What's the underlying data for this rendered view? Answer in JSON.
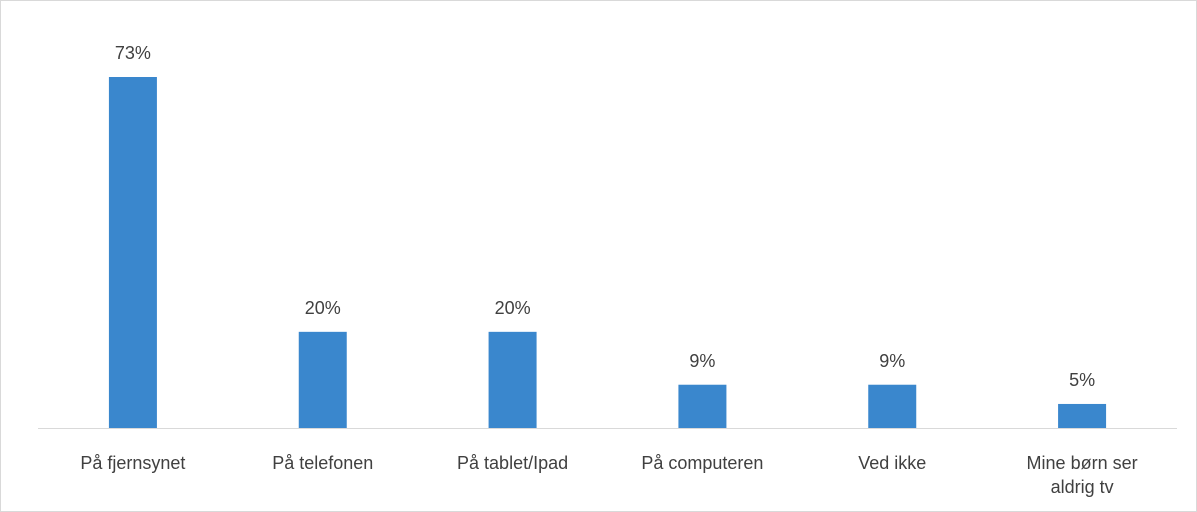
{
  "chart_data": {
    "type": "bar",
    "categories": [
      "På fjernsynet",
      "På telefonen",
      "På tablet/Ipad",
      "På computeren",
      "Ved ikke",
      "Mine børn ser aldrig tv"
    ],
    "values": [
      73,
      20,
      20,
      9,
      9,
      5
    ],
    "value_labels": [
      "73%",
      "20%",
      "20%",
      "9%",
      "9%",
      "5%"
    ],
    "color": "#3a87cd"
  }
}
